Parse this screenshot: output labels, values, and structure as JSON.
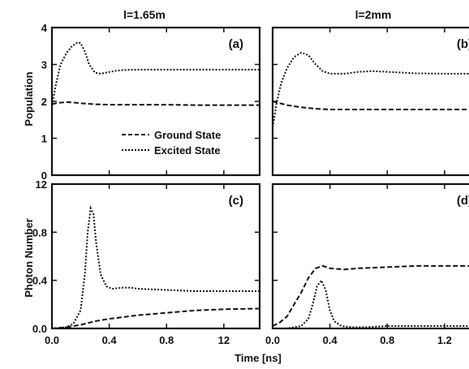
{
  "column_titles": [
    "l=1.65m",
    "l=2mm"
  ],
  "axis_labels": {
    "x": "Time [ns]",
    "y_top": "Population",
    "y_bottom": "Photon Number"
  },
  "panel_labels": [
    "(a)",
    "(b)",
    "(c)",
    "(d)"
  ],
  "legend": {
    "placement": "lower-right of panel (a)",
    "entries": [
      "Ground State",
      "Excited State"
    ]
  },
  "ticks": {
    "x_left": [
      "0.0",
      "0.4",
      "0.8",
      "12"
    ],
    "x_right": [
      "0.0",
      "0.4",
      "0.8",
      "1.2"
    ],
    "y_top": [
      "0",
      "1",
      "2",
      "3",
      "4"
    ],
    "y_bottom": [
      "0.0",
      "0.4",
      "0.8",
      "12"
    ]
  },
  "chart_data": [
    {
      "id": "a",
      "type": "line",
      "xlim": [
        0,
        1.45
      ],
      "ylim": [
        0,
        4
      ],
      "series": [
        {
          "name": "Ground State",
          "style": "dashed",
          "x": [
            0.0,
            0.05,
            0.1,
            0.15,
            0.2,
            0.3,
            0.4,
            0.6,
            0.8,
            1.0,
            1.2,
            1.45
          ],
          "y": [
            1.93,
            1.96,
            1.98,
            1.97,
            1.95,
            1.92,
            1.91,
            1.91,
            1.91,
            1.9,
            1.9,
            1.9
          ]
        },
        {
          "name": "Excited State",
          "style": "dotted",
          "x": [
            0.0,
            0.03,
            0.06,
            0.1,
            0.14,
            0.18,
            0.2,
            0.23,
            0.26,
            0.3,
            0.34,
            0.38,
            0.45,
            0.5,
            0.6,
            0.8,
            1.0,
            1.2,
            1.45
          ],
          "y": [
            1.9,
            2.5,
            3.0,
            3.3,
            3.5,
            3.6,
            3.58,
            3.35,
            3.0,
            2.78,
            2.75,
            2.78,
            2.83,
            2.85,
            2.86,
            2.86,
            2.86,
            2.86,
            2.86
          ]
        }
      ]
    },
    {
      "id": "b",
      "type": "line",
      "xlim": [
        0,
        1.45
      ],
      "ylim": [
        0,
        4
      ],
      "series": [
        {
          "name": "Ground State",
          "style": "dashed",
          "x": [
            0.0,
            0.05,
            0.1,
            0.2,
            0.3,
            0.4,
            0.6,
            0.8,
            1.0,
            1.2,
            1.45
          ],
          "y": [
            2.0,
            1.95,
            1.9,
            1.84,
            1.8,
            1.78,
            1.78,
            1.78,
            1.78,
            1.78,
            1.78
          ]
        },
        {
          "name": "Excited State",
          "style": "dotted",
          "x": [
            0.0,
            0.03,
            0.06,
            0.1,
            0.15,
            0.2,
            0.25,
            0.3,
            0.35,
            0.4,
            0.5,
            0.6,
            0.7,
            0.8,
            1.0,
            1.2,
            1.45
          ],
          "y": [
            1.3,
            2.0,
            2.5,
            2.9,
            3.2,
            3.32,
            3.25,
            3.0,
            2.82,
            2.75,
            2.75,
            2.8,
            2.82,
            2.8,
            2.76,
            2.75,
            2.75
          ]
        }
      ]
    },
    {
      "id": "c",
      "type": "line",
      "xlim": [
        0,
        1.45
      ],
      "ylim": [
        0,
        1.2
      ],
      "series": [
        {
          "name": "Ground State",
          "style": "dashed",
          "x": [
            0.0,
            0.1,
            0.2,
            0.3,
            0.4,
            0.6,
            0.8,
            1.0,
            1.2,
            1.45
          ],
          "y": [
            0.0,
            0.01,
            0.03,
            0.06,
            0.08,
            0.11,
            0.13,
            0.15,
            0.16,
            0.165
          ]
        },
        {
          "name": "Excited State",
          "style": "dotted",
          "x": [
            0.0,
            0.1,
            0.15,
            0.2,
            0.23,
            0.25,
            0.27,
            0.29,
            0.31,
            0.34,
            0.38,
            0.42,
            0.5,
            0.55,
            0.6,
            0.8,
            1.0,
            1.2,
            1.45
          ],
          "y": [
            0.0,
            0.01,
            0.04,
            0.15,
            0.45,
            0.8,
            1.0,
            0.95,
            0.7,
            0.45,
            0.35,
            0.33,
            0.34,
            0.34,
            0.33,
            0.32,
            0.31,
            0.31,
            0.31
          ]
        }
      ]
    },
    {
      "id": "d",
      "type": "line",
      "xlim": [
        0,
        1.45
      ],
      "ylim": [
        0,
        1.2
      ],
      "series": [
        {
          "name": "Ground State",
          "style": "dashed",
          "x": [
            0.0,
            0.05,
            0.1,
            0.15,
            0.2,
            0.25,
            0.3,
            0.35,
            0.4,
            0.5,
            0.6,
            0.8,
            1.0,
            1.2,
            1.45
          ],
          "y": [
            0.02,
            0.05,
            0.1,
            0.2,
            0.3,
            0.42,
            0.5,
            0.52,
            0.5,
            0.49,
            0.5,
            0.51,
            0.52,
            0.52,
            0.52
          ]
        },
        {
          "name": "Excited State",
          "style": "dotted",
          "x": [
            0.0,
            0.1,
            0.2,
            0.25,
            0.28,
            0.31,
            0.34,
            0.37,
            0.4,
            0.43,
            0.48,
            0.55,
            0.65,
            0.8,
            1.0,
            1.2,
            1.45
          ],
          "y": [
            0.0,
            0.0,
            0.02,
            0.08,
            0.2,
            0.35,
            0.4,
            0.32,
            0.15,
            0.06,
            0.02,
            0.01,
            0.01,
            0.02,
            0.02,
            0.02,
            0.02
          ]
        }
      ]
    }
  ]
}
